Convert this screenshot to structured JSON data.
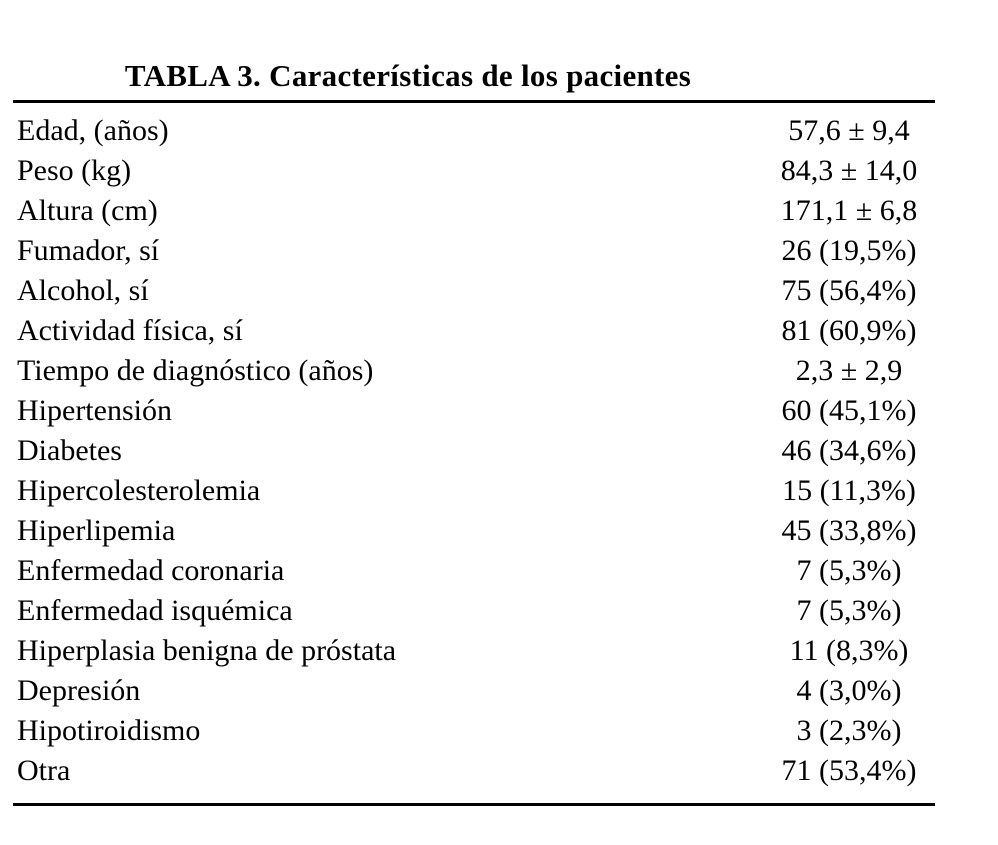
{
  "table": {
    "title": "TABLA 3. Características de los pacientes",
    "rows": [
      {
        "label": "Edad, (años)",
        "value": "57,6 ± 9,4"
      },
      {
        "label": "Peso (kg)",
        "value": "84,3 ± 14,0"
      },
      {
        "label": "Altura (cm)",
        "value": "171,1 ± 6,8"
      },
      {
        "label": "Fumador, sí",
        "value": "26 (19,5%)"
      },
      {
        "label": "Alcohol, sí",
        "value": "75 (56,4%)"
      },
      {
        "label": "Actividad física, sí",
        "value": "81 (60,9%)"
      },
      {
        "label": "Tiempo de diagnóstico (años)",
        "value": "2,3 ± 2,9"
      },
      {
        "label": "Hipertensión",
        "value": "60 (45,1%)"
      },
      {
        "label": "Diabetes",
        "value": "46 (34,6%)"
      },
      {
        "label": "Hipercolesterolemia",
        "value": "15 (11,3%)"
      },
      {
        "label": "Hiperlipemia",
        "value": "45 (33,8%)"
      },
      {
        "label": "Enfermedad coronaria",
        "value": "7 (5,3%)"
      },
      {
        "label": "Enfermedad isquémica",
        "value": "7 (5,3%)"
      },
      {
        "label": "Hiperplasia benigna de próstata",
        "value": "11 (8,3%)"
      },
      {
        "label": "Depresión",
        "value": "4 (3,0%)"
      },
      {
        "label": "Hipotiroidismo",
        "value": "3 (2,3%)"
      },
      {
        "label": "Otra",
        "value": "71 (53,4%)"
      }
    ],
    "colors": {
      "text": "#000000",
      "background": "#ffffff",
      "rule": "#000000"
    }
  }
}
